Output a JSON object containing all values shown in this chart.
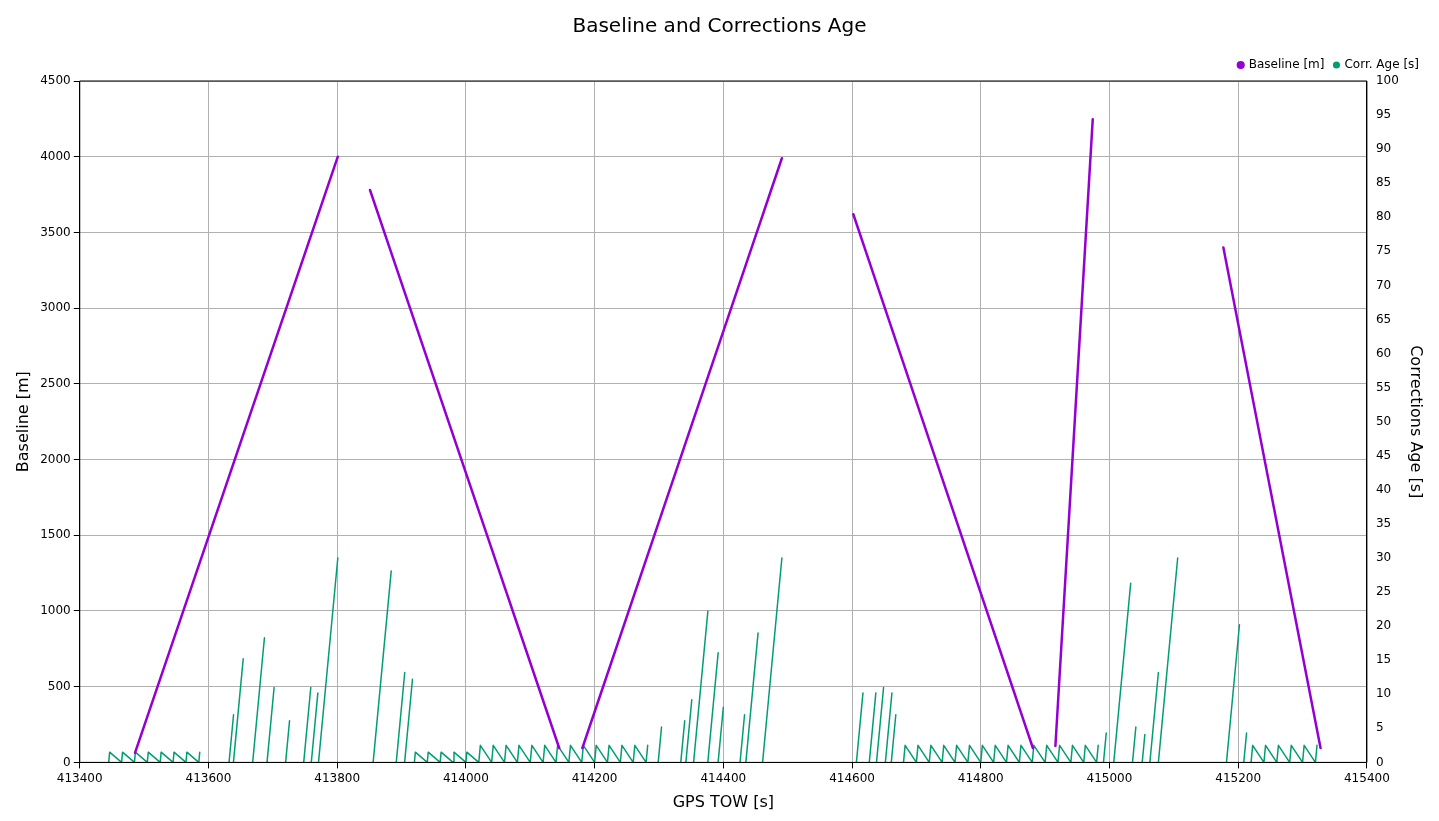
{
  "chart_data": {
    "type": "line",
    "title": "Baseline and Corrections Age",
    "xlabel": "GPS TOW [s]",
    "ylabel": "Baseline [m]",
    "y2label": "Corrections Age [s]",
    "xlim": [
      413400,
      415400
    ],
    "xticks": [
      413400,
      413600,
      413800,
      414000,
      414200,
      414400,
      414600,
      414800,
      415000,
      415200,
      415400
    ],
    "ylim": [
      0,
      4500
    ],
    "yticks": [
      0,
      500,
      1000,
      1500,
      2000,
      2500,
      3000,
      3500,
      4000,
      4500
    ],
    "y2lim": [
      0,
      100
    ],
    "y2ticks": [
      0,
      5,
      10,
      15,
      20,
      25,
      30,
      35,
      40,
      45,
      50,
      55,
      60,
      65,
      70,
      75,
      80,
      85,
      90,
      95,
      100
    ],
    "grid": true,
    "legend": "top right",
    "marker": "none",
    "line_style": "solid",
    "series": [
      {
        "name": "Baseline [m]",
        "color": "#9400d3",
        "x": [
          413486,
          413801,
          null,
          413851,
          414145,
          null,
          414181,
          414491,
          null,
          414602,
          414881,
          null,
          414916,
          414974,
          null,
          415177,
          415328
        ],
        "values": [
          64,
          4000,
          null,
          3780,
          95,
          null,
          95,
          3990,
          null,
          3620,
          95,
          null,
          108,
          4247,
          null,
          3400,
          95
        ]
      },
      {
        "name": "Corr. Age [s]",
        "color": "#009e73",
        "axis": "y2",
        "x": [
          413445,
          413446.5,
          413465,
          413466.5,
          413485,
          413486.5,
          413505,
          413506.5,
          413525,
          413526.5,
          413545,
          413546.5,
          413565,
          413566.5,
          413585,
          413586.5,
          null,
          413632,
          413639,
          null,
          413638.8,
          413654,
          null,
          413668.7,
          413687,
          null,
          413691,
          413702,
          null,
          413719.9,
          413726,
          null,
          413748,
          413759,
          null,
          413759.8,
          413770,
          null,
          413771,
          413801,
          null,
          413855.9,
          413884,
          null,
          413891.8,
          413905,
          null,
          413904.8,
          413917,
          null,
          413920,
          413921.5,
          413940,
          413941.5,
          413960,
          413961.5,
          413980,
          413981.5,
          414000,
          414001.5,
          414020,
          414022.5,
          414040,
          414042.5,
          414060,
          414062.5,
          414080,
          414082.5,
          414100,
          414102.5,
          414120,
          414122.5,
          414140,
          414142.5,
          414160,
          414162.5,
          414180,
          414182.5,
          414200,
          414202.5,
          414220,
          414222.5,
          414240,
          414242.5,
          414260,
          414262.5,
          414280,
          414282.5,
          null,
          414298.8,
          414304,
          null,
          414333.9,
          414340,
          null,
          414341.8,
          414351,
          null,
          414353.8,
          414376,
          null,
          414375.9,
          414392,
          null,
          414391.9,
          414400,
          null,
          414426,
          414433,
          null,
          414435,
          414454,
          null,
          414461,
          414491,
          null,
          414606.8,
          414617,
          null,
          414626.8,
          414637,
          null,
          414638,
          414649,
          null,
          414651.8,
          414662,
          null,
          414661,
          414668,
          null,
          414680,
          414682.5,
          414700,
          414702.5,
          414720,
          414722.5,
          414740,
          414742.5,
          414760,
          414762.5,
          414780,
          414782.5,
          414800,
          414802.5,
          414820,
          414822.5,
          414840,
          414842.5,
          414860,
          414862.5,
          414880,
          414882.5,
          414900,
          414902.5,
          414920,
          414922.5,
          414940,
          414942.5,
          414960,
          414962.5,
          414980,
          414982.5,
          null,
          414990.7,
          414995,
          null,
          415006.7,
          415033,
          null,
          415035.8,
          415041,
          null,
          415050.9,
          415055,
          null,
          415062.8,
          415076,
          null,
          415076,
          415106,
          null,
          415181.8,
          415202,
          null,
          415208.7,
          415213,
          null,
          415220,
          415222.5,
          415240,
          415242.5,
          415260,
          415262.5,
          415280,
          415282.5,
          415300,
          415302.5,
          415320,
          415322.5
        ],
        "values": [
          0,
          1.5,
          0,
          1.5,
          0,
          1.5,
          0,
          1.5,
          0,
          1.5,
          0,
          1.5,
          0,
          1.5,
          0,
          1.5,
          null,
          0,
          7,
          null,
          0,
          15.2,
          null,
          0,
          18.3,
          null,
          0,
          11,
          null,
          0,
          6.1,
          null,
          0,
          11,
          null,
          0,
          10.2,
          null,
          0,
          30,
          null,
          0,
          28.1,
          null,
          0,
          13.2,
          null,
          0,
          12.2,
          null,
          0,
          1.5,
          0,
          1.5,
          0,
          1.5,
          0,
          1.5,
          0,
          1.5,
          0,
          2.5,
          0,
          2.5,
          0,
          2.5,
          0,
          2.5,
          0,
          2.5,
          0,
          2.5,
          0,
          2.5,
          0,
          2.5,
          0,
          2.5,
          0,
          2.5,
          0,
          2.5,
          0,
          2.5,
          0,
          2.5,
          0,
          2.5,
          null,
          0,
          5.2,
          null,
          0,
          6.1,
          null,
          0,
          9.2,
          null,
          0,
          22.2,
          null,
          0,
          16.1,
          null,
          0,
          8.1,
          null,
          0,
          7,
          null,
          0,
          19,
          null,
          0,
          30,
          null,
          0,
          10.2,
          null,
          0,
          10.2,
          null,
          0,
          11,
          null,
          0,
          10.2,
          null,
          0,
          7,
          null,
          0,
          2.5,
          0,
          2.5,
          0,
          2.5,
          0,
          2.5,
          0,
          2.5,
          0,
          2.5,
          0,
          2.5,
          0,
          2.5,
          0,
          2.5,
          0,
          2.5,
          0,
          2.5,
          0,
          2.5,
          0,
          2.5,
          0,
          2.5,
          0,
          2.5,
          0,
          2.5,
          null,
          0,
          4.3,
          null,
          0,
          26.3,
          null,
          0,
          5.2,
          null,
          0,
          4.1,
          null,
          0,
          13.2,
          null,
          0,
          30,
          null,
          0,
          20.2,
          null,
          0,
          4.3,
          null,
          0,
          2.5,
          0,
          2.5,
          0,
          2.5,
          0,
          2.5,
          0,
          2.5,
          0,
          2.5
        ]
      }
    ]
  }
}
